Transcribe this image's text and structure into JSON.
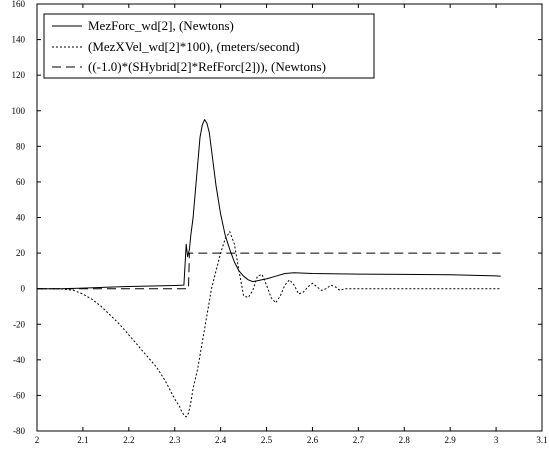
{
  "chart_data": {
    "type": "line",
    "xlim": [
      2,
      3.1
    ],
    "ylim": [
      -80,
      160
    ],
    "x_ticks": [
      2,
      2.1,
      2.2,
      2.3,
      2.4,
      2.5,
      2.6,
      2.7,
      2.8,
      2.9,
      3,
      3.1
    ],
    "y_ticks": [
      -80,
      -60,
      -40,
      -20,
      0,
      20,
      40,
      60,
      80,
      100,
      120,
      140,
      160
    ],
    "x_tick_labels": [
      "2",
      "2.1",
      "2.2",
      "2.3",
      "2.4",
      "2.5",
      "2.6",
      "2.7",
      "2.8",
      "2.9",
      "3",
      "3.1"
    ],
    "y_tick_labels": [
      "-80",
      "-60",
      "-40",
      "-20",
      "0",
      "20",
      "40",
      "60",
      "80",
      "100",
      "120",
      "140",
      "160"
    ],
    "grid": false,
    "legend_position": "top-left",
    "series": [
      {
        "name": "MezForc_wd[2], (Newtons)",
        "style": "solid",
        "color": "#000000",
        "x": [
          2.0,
          2.05,
          2.1,
          2.15,
          2.2,
          2.25,
          2.3,
          2.32,
          2.325,
          2.328,
          2.332,
          2.335,
          2.34,
          2.345,
          2.35,
          2.355,
          2.36,
          2.365,
          2.37,
          2.375,
          2.38,
          2.39,
          2.4,
          2.41,
          2.42,
          2.43,
          2.44,
          2.45,
          2.46,
          2.47,
          2.48,
          2.49,
          2.5,
          2.52,
          2.54,
          2.56,
          2.6,
          2.7,
          2.8,
          2.9,
          3.0,
          3.01
        ],
        "y": [
          0,
          0,
          0.3,
          0.8,
          1.2,
          1.5,
          1.8,
          2.0,
          25,
          18,
          22,
          30,
          40,
          55,
          70,
          85,
          92,
          95,
          93,
          88,
          78,
          58,
          42,
          30,
          22,
          15,
          10,
          7,
          5,
          4,
          4.5,
          5,
          5.5,
          7,
          8.5,
          9,
          8.5,
          8.2,
          8,
          7.8,
          7.2,
          7
        ]
      },
      {
        "name": "(MezXVel_wd[2]*100), (meters/second)",
        "style": "dotted",
        "color": "#000000",
        "x": [
          2.0,
          2.05,
          2.08,
          2.1,
          2.12,
          2.14,
          2.16,
          2.18,
          2.2,
          2.22,
          2.24,
          2.26,
          2.27,
          2.28,
          2.29,
          2.3,
          2.31,
          2.315,
          2.32,
          2.325,
          2.33,
          2.335,
          2.34,
          2.35,
          2.36,
          2.37,
          2.38,
          2.39,
          2.4,
          2.41,
          2.42,
          2.43,
          2.44,
          2.45,
          2.46,
          2.47,
          2.48,
          2.49,
          2.5,
          2.51,
          2.52,
          2.53,
          2.54,
          2.55,
          2.56,
          2.57,
          2.58,
          2.59,
          2.6,
          2.61,
          2.62,
          2.63,
          2.64,
          2.65,
          2.66,
          2.67,
          2.68,
          2.7,
          2.75,
          2.8,
          2.9,
          3.0,
          3.01
        ],
        "y": [
          0,
          0,
          -1,
          -3,
          -6,
          -10,
          -15,
          -20,
          -26,
          -32,
          -38,
          -44,
          -48,
          -52,
          -57,
          -62,
          -66,
          -69,
          -71,
          -72,
          -70,
          -64,
          -56,
          -45,
          -30,
          -15,
          0,
          10,
          20,
          28,
          32,
          25,
          10,
          -4,
          -5,
          -1,
          7,
          8,
          2,
          -5,
          -8,
          -4,
          2,
          5,
          2,
          -3,
          -2,
          1,
          3,
          1,
          -1,
          0,
          2,
          1,
          -1,
          0,
          0,
          0,
          0,
          0,
          0,
          0,
          0
        ]
      },
      {
        "name": "((-1.0)*(SHybrid[2]*RefForc[2])), (Newtons)",
        "style": "dashed",
        "color": "#000000",
        "x": [
          2.0,
          2.1,
          2.2,
          2.3,
          2.33,
          2.332,
          2.34,
          2.5,
          2.7,
          2.9,
          3.0,
          3.01
        ],
        "y": [
          0,
          0,
          0,
          0,
          0,
          20,
          20,
          20,
          20,
          20,
          20,
          20
        ]
      }
    ]
  }
}
